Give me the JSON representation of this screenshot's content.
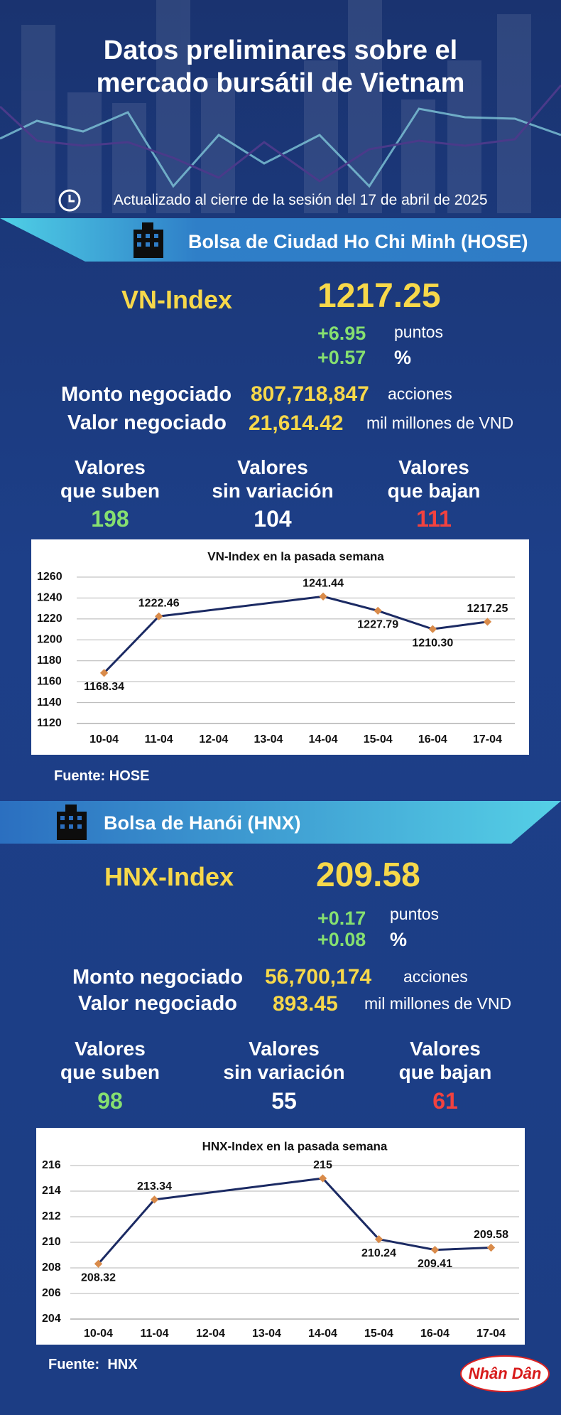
{
  "header": {
    "title_lines": [
      "Datos preliminares sobre el",
      "mercado bursátil de Vietnam"
    ],
    "updated": "Actualizado al cierre de la sesión del 17 de abril de 2025"
  },
  "sections": [
    {
      "heading": "Bolsa de Ciudad Ho Chi Minh (HOSE)",
      "index_name": "VN-Index",
      "index_value": "1217.25",
      "change_points": "+6.95",
      "points_unit": "puntos",
      "change_percent": "+0.57",
      "percent_unit": "%",
      "volume_label": "Monto negociado",
      "volume": "807,718,847",
      "volume_unit": "acciones",
      "value_label": "Valor negociado",
      "value": "21,614.42",
      "value_unit": "mil millones de VND",
      "breadth": [
        {
          "label_lines": [
            "Valores",
            "que suben"
          ],
          "count": 198
        },
        {
          "label_lines": [
            "Valores",
            "sin variación"
          ],
          "count": 104
        },
        {
          "label_lines": [
            "Valores",
            "que bajan"
          ],
          "count": 111
        }
      ],
      "source": "Fuente: HOSE"
    },
    {
      "heading": "Bolsa de Hanói (HNX)",
      "index_name": "HNX-Index",
      "index_value": "209.58",
      "change_points": "+0.17",
      "points_unit": "puntos",
      "change_percent": "+0.08",
      "percent_unit": "%",
      "volume_label": "Monto negociado",
      "volume": "56,700,174",
      "volume_unit": "acciones",
      "value_label": "Valor negociado",
      "value": "893.45",
      "value_unit": "mil millones de VND",
      "breadth": [
        {
          "label_lines": [
            "Valores",
            "que suben"
          ],
          "count": 98
        },
        {
          "label_lines": [
            "Valores",
            "sin variación"
          ],
          "count": 55
        },
        {
          "label_lines": [
            "Valores",
            "que bajan"
          ],
          "count": 61
        }
      ],
      "source": "Fuente:  HNX"
    }
  ],
  "logo": "Nhân Dân",
  "chart_data": [
    {
      "type": "line",
      "title": "VN-Index en la pasada semana",
      "categories": [
        "10-04",
        "11-04",
        "12-04",
        "13-04",
        "14-04",
        "15-04",
        "16-04",
        "17-04"
      ],
      "ylim": [
        1120,
        1260
      ],
      "yticks": [
        1120,
        1140,
        1160,
        1180,
        1200,
        1220,
        1240,
        1260
      ],
      "grid": true,
      "series": [
        {
          "color": "#1b2a63",
          "marker_color": "#d98b4a",
          "x": [
            "10-04",
            "11-04",
            "14-04",
            "15-04",
            "16-04",
            "17-04"
          ],
          "values": [
            1168.34,
            1222.46,
            1241.44,
            1227.79,
            1210.3,
            1217.25
          ],
          "value_labels": [
            "1168.34",
            "1222.46",
            "1241.44",
            "1227.79",
            "1210.30",
            "1217.25"
          ]
        }
      ]
    },
    {
      "type": "line",
      "title": "HNX-Index en la pasada semana",
      "categories": [
        "10-04",
        "11-04",
        "12-04",
        "13-04",
        "14-04",
        "15-04",
        "16-04",
        "17-04"
      ],
      "ylim": [
        204,
        216
      ],
      "yticks": [
        204,
        206,
        208,
        210,
        212,
        214,
        216
      ],
      "grid": true,
      "series": [
        {
          "color": "#1b2a63",
          "marker_color": "#d98b4a",
          "x": [
            "10-04",
            "11-04",
            "14-04",
            "15-04",
            "16-04",
            "17-04"
          ],
          "values": [
            208.32,
            213.34,
            215,
            210.24,
            209.41,
            209.58
          ],
          "value_labels": [
            "208.32",
            "213.34",
            "215",
            "210.24",
            "209.41",
            "209.58"
          ]
        }
      ]
    }
  ]
}
